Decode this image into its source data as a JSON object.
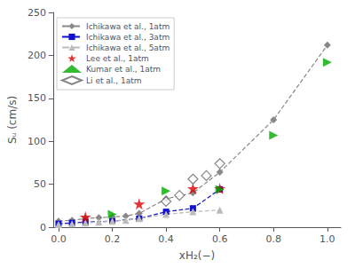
{
  "chart_data": {
    "type": "line",
    "xlabel": "xH₂(−)",
    "ylabel": "Sᵤ (cm/s)",
    "xlim": [
      -0.02,
      1.05
    ],
    "ylim": [
      0,
      250
    ],
    "xticks": [
      {
        "value": 0.0,
        "label": "0.0"
      },
      0.2,
      0.4,
      0.6,
      0.8,
      {
        "value": 1.0,
        "label": "1.0"
      }
    ],
    "yticks": [
      0,
      50,
      100,
      150,
      200,
      250
    ],
    "grid": false,
    "legend": "upper left",
    "series": [
      {
        "name": "Ichikawa et al., 1atm",
        "type": "line",
        "line_style": "dashed",
        "marker": "diamond",
        "color": "#888888",
        "x": [
          0.0,
          0.05,
          0.1,
          0.15,
          0.2,
          0.25,
          0.3,
          0.4,
          0.5,
          0.6,
          0.8,
          1.0
        ],
        "values": [
          7,
          8,
          10,
          11,
          12,
          13,
          16,
          33,
          40,
          64,
          125,
          212
        ]
      },
      {
        "name": "Ichikawa et al., 3atm",
        "type": "line",
        "line_style": "dashed",
        "marker": "square",
        "color": "#1111cc",
        "x": [
          0.0,
          0.05,
          0.1,
          0.2,
          0.3,
          0.4,
          0.5,
          0.6
        ],
        "values": [
          4,
          5,
          6,
          7,
          10,
          18,
          22,
          44
        ]
      },
      {
        "name": "Ichikawa et al., 5atm",
        "type": "line",
        "line_style": "dashed",
        "marker": "triangle",
        "color": "#bbbbbb",
        "x": [
          0.0,
          0.05,
          0.1,
          0.15,
          0.2,
          0.25,
          0.3,
          0.4,
          0.5,
          0.6
        ],
        "values": [
          3,
          4,
          5,
          6,
          7,
          8,
          10,
          15,
          18,
          20
        ]
      },
      {
        "name": "Lee et al., 1atm",
        "type": "scatter",
        "marker": "star",
        "color": "#dd0000",
        "x": [
          0.1,
          0.3,
          0.5,
          0.6
        ],
        "values": [
          12,
          27,
          45,
          45
        ]
      },
      {
        "name": "Kumar et al., 1atm",
        "type": "scatter",
        "marker": "triangle_right",
        "color": "#00aa00",
        "x": [
          0.2,
          0.4,
          0.6,
          0.8,
          1.0
        ],
        "values": [
          15,
          42,
          44,
          107,
          192
        ]
      },
      {
        "name": "Li et al., 1atm",
        "type": "scatter",
        "marker": "open_diamond",
        "color": "#666666",
        "x": [
          0.4,
          0.45,
          0.5,
          0.55,
          0.6
        ],
        "values": [
          30,
          37,
          56,
          60,
          74
        ]
      }
    ]
  }
}
